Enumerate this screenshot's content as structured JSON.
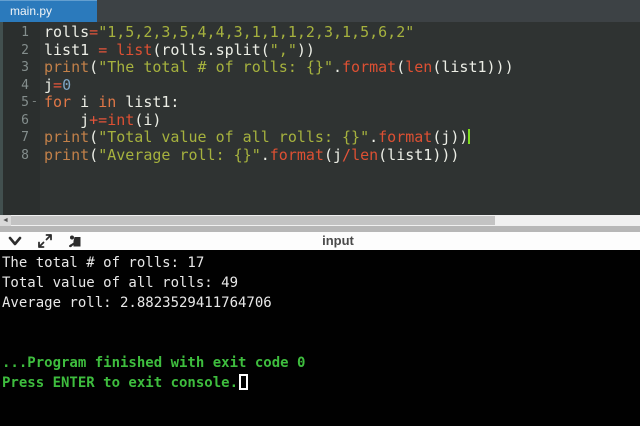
{
  "tab": {
    "title": "main.py"
  },
  "editor": {
    "lines": [
      {
        "num": 1,
        "tokens": [
          [
            "pln",
            "rolls"
          ],
          [
            "op",
            "="
          ],
          [
            "str",
            "\"1,5,2,3,5,4,4,3,1,1,1,2,3,1,5,6,2\""
          ]
        ]
      },
      {
        "num": 2,
        "tokens": [
          [
            "pln",
            "list1 "
          ],
          [
            "op",
            "="
          ],
          [
            "pln",
            " "
          ],
          [
            "fn",
            "list"
          ],
          [
            "pln",
            "(rolls.split("
          ],
          [
            "str",
            "\",\""
          ],
          [
            "pln",
            "))"
          ]
        ]
      },
      {
        "num": 3,
        "tokens": [
          [
            "print",
            "print"
          ],
          [
            "pln",
            "("
          ],
          [
            "str",
            "\"The total # of rolls: {}\""
          ],
          [
            "pln",
            "."
          ],
          [
            "fn",
            "format"
          ],
          [
            "pln",
            "("
          ],
          [
            "fn",
            "len"
          ],
          [
            "pln",
            "(list1)))"
          ]
        ]
      },
      {
        "num": 4,
        "tokens": [
          [
            "pln",
            "j"
          ],
          [
            "op",
            "="
          ],
          [
            "num",
            "0"
          ]
        ]
      },
      {
        "num": 5,
        "fold": true,
        "tokens": [
          [
            "kw",
            "for"
          ],
          [
            "pln",
            " i "
          ],
          [
            "kw",
            "in"
          ],
          [
            "pln",
            " list1:"
          ]
        ]
      },
      {
        "num": 6,
        "tokens": [
          [
            "pln",
            "    j"
          ],
          [
            "op",
            "+="
          ],
          [
            "fn",
            "int"
          ],
          [
            "pln",
            "(i)"
          ]
        ]
      },
      {
        "num": 7,
        "cursor": true,
        "tokens": [
          [
            "print",
            "print"
          ],
          [
            "pln",
            "("
          ],
          [
            "str",
            "\"Total value of all rolls: {}\""
          ],
          [
            "pln",
            "."
          ],
          [
            "fn",
            "format"
          ],
          [
            "pln",
            "(j))"
          ]
        ]
      },
      {
        "num": 8,
        "tokens": [
          [
            "print",
            "print"
          ],
          [
            "pln",
            "("
          ],
          [
            "str",
            "\"Average roll: {}\""
          ],
          [
            "pln",
            "."
          ],
          [
            "fn",
            "format"
          ],
          [
            "pln",
            "(j"
          ],
          [
            "op",
            "/"
          ],
          [
            "fn",
            "len"
          ],
          [
            "pln",
            "(list1)))"
          ]
        ]
      }
    ]
  },
  "scrollbar": {
    "left_arrow": "◄"
  },
  "console": {
    "header": {
      "title": "input",
      "icons": [
        "collapse-console-icon",
        "expand-console-icon",
        "detach-console-icon"
      ]
    },
    "output": [
      {
        "text": "The total # of rolls: 17",
        "color": "white"
      },
      {
        "text": "Total value of all rolls: 49",
        "color": "white"
      },
      {
        "text": "Average roll: 2.8823529411764706",
        "color": "white"
      },
      {
        "text": "",
        "color": "white"
      },
      {
        "text": "",
        "color": "white"
      },
      {
        "text": "...Program finished with exit code 0",
        "color": "green"
      },
      {
        "text": "Press ENTER to exit console.",
        "color": "green",
        "cursor": true
      }
    ]
  },
  "colors": {
    "tab_active_bg": "#2b7abc",
    "tabbar_bg": "#3d4245",
    "editor_bg": "#2f3332",
    "gutter_bg": "#2b2f2e",
    "string": "#a6b23e",
    "keyword": "#df7747",
    "operator": "#e4543a",
    "builtin": "#dd5033",
    "print_fn": "#c28049",
    "number": "#7fa5c5",
    "editor_cursor": "#7fdc1f",
    "console_bg": "#010101",
    "console_text": "#e8e8e8",
    "console_green": "#3ebd3e",
    "header_bg": "#fdfdfd"
  }
}
